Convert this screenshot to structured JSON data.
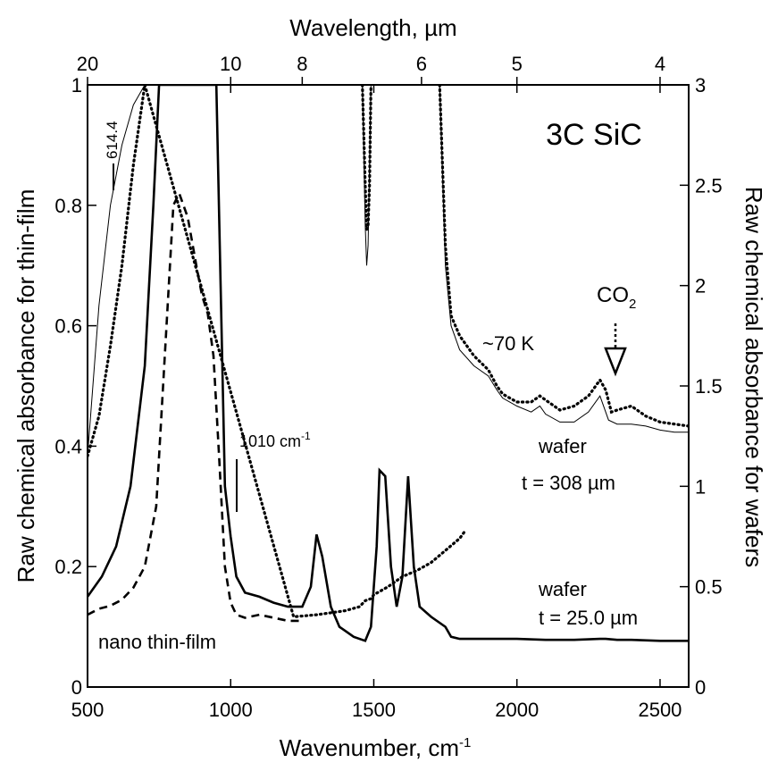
{
  "chart_data": {
    "type": "line",
    "title": "3C SiC",
    "xlabel": "Wavenumber, cm",
    "xlabel_sup": "-1",
    "x2label": "Wavelength, µm",
    "ylabel": "Raw chemical absorbance for thin-film",
    "y2label": "Raw chemical absorbance for wafers",
    "xlim": [
      500,
      2600
    ],
    "ylim": [
      0,
      1
    ],
    "y2lim": [
      0,
      3
    ],
    "x_ticks": [
      "500",
      "1000",
      "1500",
      "2000",
      "2500"
    ],
    "y_ticks": [
      "0",
      "0.2",
      "0.4",
      "0.6",
      "0.8",
      "1"
    ],
    "y2_ticks": [
      "0",
      "0.5",
      "1",
      "1.5",
      "2",
      "2.5",
      "3"
    ],
    "x2_ticks": [
      "20",
      "10",
      "8",
      "6",
      "5",
      "4"
    ],
    "annotations": {
      "line_614": "614.4",
      "line_1010": "1010 cm",
      "line_1010_sup": "-1",
      "co2": "CO",
      "co2_sub": "2",
      "temp": "~70 K",
      "wafer_thick_1": "wafer",
      "wafer_thick_2": "t = 308 µm",
      "wafer_thin_1": "wafer",
      "wafer_thin_2": "t = 25.0 µm",
      "film": "nano thin-film"
    },
    "series": [
      {
        "name": "nano thin-film",
        "axis": "left",
        "style": "dashed",
        "x": [
          500,
          540,
          580,
          620,
          660,
          700,
          740,
          770,
          800,
          820,
          850,
          880,
          900,
          920,
          940,
          960,
          980,
          1000,
          1020,
          1050,
          1100,
          1150,
          1200,
          1240
        ],
        "y": [
          0.12,
          0.13,
          0.135,
          0.145,
          0.165,
          0.2,
          0.3,
          0.55,
          0.8,
          0.82,
          0.78,
          0.7,
          0.65,
          0.62,
          0.55,
          0.38,
          0.2,
          0.14,
          0.12,
          0.115,
          0.12,
          0.115,
          0.11,
          0.11
        ]
      },
      {
        "name": "wafer t = 25.0 µm",
        "axis": "right",
        "style": "solid",
        "x": [
          500,
          550,
          600,
          650,
          700,
          730,
          750,
          800,
          850,
          900,
          950,
          965,
          980,
          1000,
          1020,
          1050,
          1100,
          1150,
          1200,
          1250,
          1280,
          1300,
          1320,
          1350,
          1380,
          1400,
          1430,
          1470,
          1490,
          1510,
          1520,
          1540,
          1560,
          1580,
          1600,
          1620,
          1640,
          1660,
          1700,
          1750,
          1770,
          1800,
          1900,
          2000,
          2100,
          2200,
          2290,
          2310,
          2350,
          2400,
          2500,
          2600
        ],
        "y": [
          0.45,
          0.55,
          0.7,
          1.0,
          1.6,
          2.4,
          3.0,
          3.0,
          3.0,
          3.0,
          3.0,
          2.0,
          1.0,
          0.75,
          0.55,
          0.47,
          0.45,
          0.42,
          0.4,
          0.4,
          0.5,
          0.76,
          0.65,
          0.4,
          0.3,
          0.28,
          0.25,
          0.23,
          0.3,
          0.7,
          1.08,
          1.05,
          0.6,
          0.4,
          0.55,
          1.05,
          0.6,
          0.4,
          0.35,
          0.3,
          0.25,
          0.24,
          0.24,
          0.24,
          0.235,
          0.235,
          0.24,
          0.24,
          0.235,
          0.235,
          0.23,
          0.23
        ]
      },
      {
        "name": "wafer t = 308 µm (~70 K)",
        "axis": "right",
        "style": "dotted",
        "x": [
          500,
          540,
          580,
          620,
          660,
          700,
          1220,
          1300,
          1350,
          1400,
          1450,
          1470,
          1490,
          1500,
          1550,
          1600,
          1650,
          1700,
          1750,
          1800,
          1820
        ],
        "y": [
          1.15,
          1.35,
          1.7,
          2.1,
          2.6,
          3.0,
          0.35,
          0.36,
          0.37,
          0.38,
          0.4,
          0.43,
          0.44,
          0.46,
          0.5,
          0.55,
          0.58,
          0.62,
          0.68,
          0.74,
          0.78
        ]
      },
      {
        "name": "wafer t = 308 µm, segment 2",
        "axis": "right",
        "style": "dotted",
        "x": [
          1460,
          1470,
          1475,
          1480,
          1485,
          1490
        ],
        "y": [
          3.0,
          2.5,
          2.28,
          2.3,
          2.5,
          3.0
        ]
      },
      {
        "name": "wafer t = 308 µm, segment 3",
        "axis": "right",
        "style": "dotted",
        "x": [
          1730,
          1750,
          1770,
          1800,
          1850,
          1900,
          1930,
          1950,
          2000,
          2050,
          2080,
          2100,
          2150,
          2200,
          2250,
          2290,
          2310,
          2330,
          2350,
          2400,
          2450,
          2500,
          2550,
          2600
        ],
        "y": [
          3.0,
          2.2,
          1.85,
          1.75,
          1.65,
          1.58,
          1.5,
          1.46,
          1.42,
          1.42,
          1.45,
          1.43,
          1.38,
          1.4,
          1.45,
          1.53,
          1.48,
          1.37,
          1.38,
          1.4,
          1.35,
          1.32,
          1.31,
          1.3
        ]
      },
      {
        "name": "wafer t = 308 µm (thin line)",
        "axis": "right",
        "style": "thin",
        "x": [
          500,
          540,
          580,
          620,
          660,
          700,
          1460,
          1470,
          1475,
          1480,
          1485,
          1490,
          1730,
          1750,
          1770,
          1800,
          1850,
          1900,
          1930,
          1950,
          2000,
          2050,
          2080,
          2100,
          2150,
          2200,
          2250,
          2290,
          2320,
          2350,
          2400,
          2450,
          2500,
          2550,
          2600
        ],
        "y": [
          1.15,
          1.9,
          2.4,
          2.7,
          2.9,
          3.0,
          3.0,
          2.3,
          2.1,
          2.2,
          2.6,
          3.0,
          3.0,
          2.1,
          1.8,
          1.68,
          1.6,
          1.55,
          1.48,
          1.44,
          1.4,
          1.37,
          1.4,
          1.36,
          1.32,
          1.32,
          1.37,
          1.45,
          1.33,
          1.31,
          1.31,
          1.3,
          1.28,
          1.27,
          1.27
        ]
      }
    ]
  }
}
